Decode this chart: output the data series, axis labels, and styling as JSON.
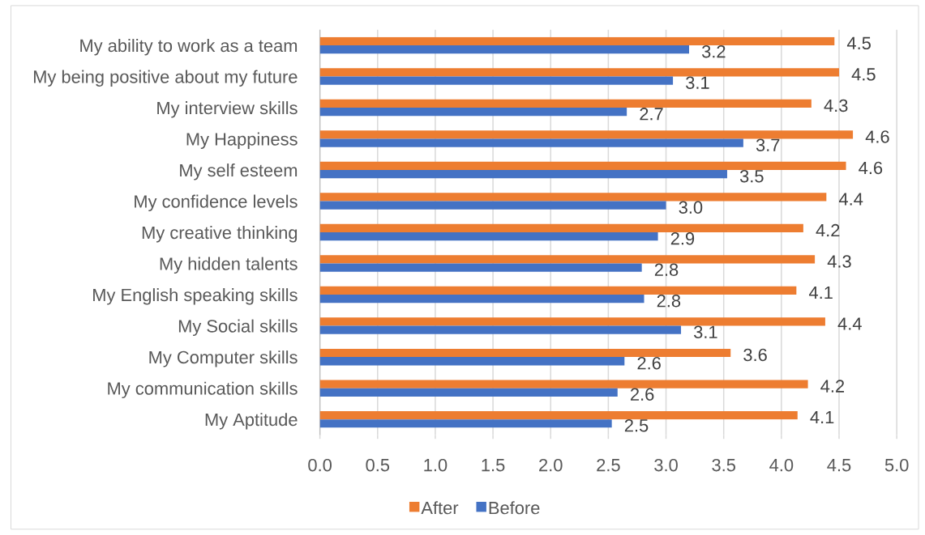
{
  "chart_data": {
    "type": "bar",
    "orientation": "horizontal",
    "categories": [
      "My ability to work as a team",
      "My being positive about my future",
      "My interview skills",
      "My Happiness",
      "My self esteem",
      "My confidence levels",
      "My creative thinking",
      "My hidden talents",
      "My English speaking skills",
      "My Social skills",
      "My Computer skills",
      "My communication skills",
      "My Aptitude"
    ],
    "series": [
      {
        "name": "After",
        "color": "#ed7d31",
        "values": [
          4.46,
          4.5,
          4.26,
          4.62,
          4.56,
          4.39,
          4.19,
          4.29,
          4.13,
          4.38,
          3.56,
          4.23,
          4.14
        ],
        "value_labels": [
          "4.5",
          "4.5",
          "4.3",
          "4.6",
          "4.6",
          "4.4",
          "4.2",
          "4.3",
          "4.1",
          "4.4",
          "3.6",
          "4.2",
          "4.1"
        ]
      },
      {
        "name": "Before",
        "color": "#4472c4",
        "values": [
          3.2,
          3.06,
          2.66,
          3.67,
          3.53,
          3.0,
          2.93,
          2.79,
          2.81,
          3.13,
          2.64,
          2.58,
          2.53
        ],
        "value_labels": [
          "3.2",
          "3.1",
          "2.7",
          "3.7",
          "3.5",
          "3.0",
          "2.9",
          "2.8",
          "2.8",
          "3.1",
          "2.6",
          "2.6",
          "2.5"
        ]
      }
    ],
    "xlim": [
      0,
      5
    ],
    "xticks": [
      {
        "value": 0,
        "label": "0.0"
      },
      0.5,
      {
        "value": 1,
        "label": "1.0"
      },
      1.5,
      {
        "value": 2,
        "label": "2.0"
      },
      2.5,
      {
        "value": 3,
        "label": "3.0"
      },
      3.5,
      {
        "value": 4,
        "label": "4.0"
      },
      4.5,
      {
        "value": 5,
        "label": "5.0"
      }
    ],
    "grid": "x",
    "legend": "bottom"
  }
}
